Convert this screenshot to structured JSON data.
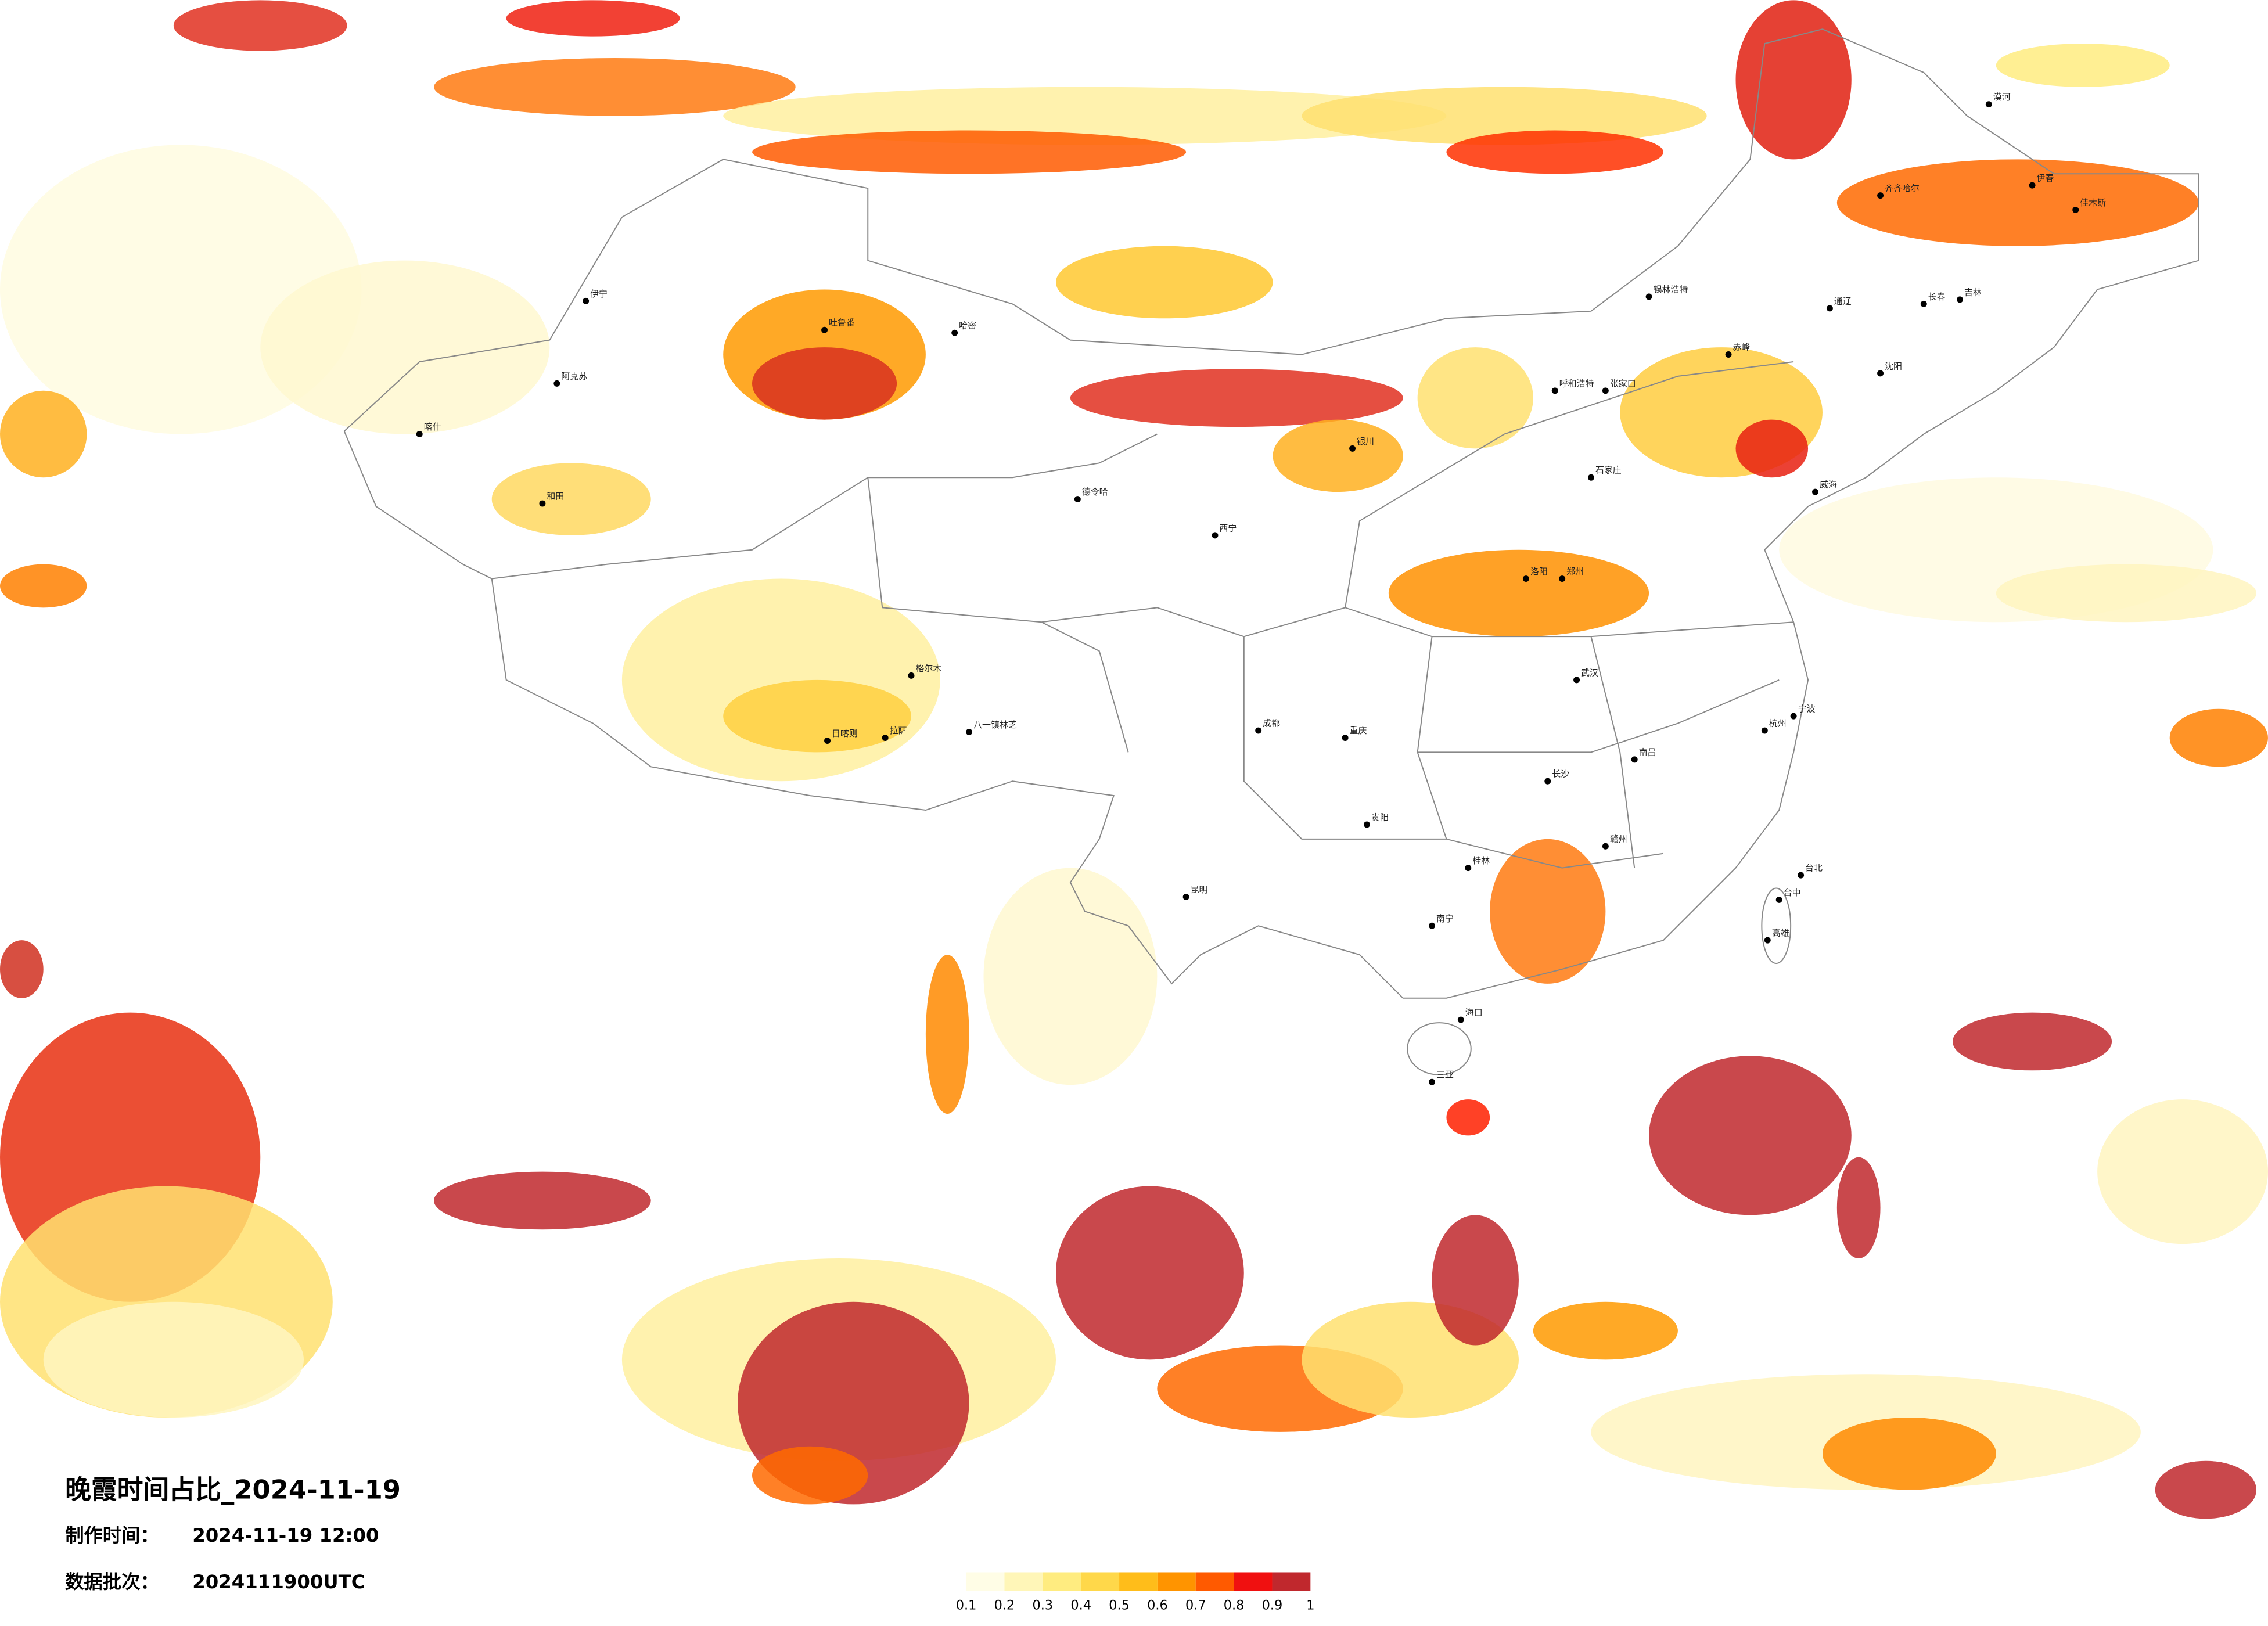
{
  "title": "晚霞时间占比_2024-11-19",
  "made_time_label": "制作时间：",
  "made_time": "2024-11-19 12:00",
  "batch_label": "数据批次：",
  "batch": "2024111900UTC",
  "colorbar": {
    "colors": [
      "#fffde6",
      "#fff6b8",
      "#ffec80",
      "#ffd84a",
      "#ffbd1a",
      "#ff9400",
      "#ff5a00",
      "#f01010",
      "#c0282d"
    ],
    "ticks": [
      0.1,
      0.2,
      0.3,
      0.4,
      0.5,
      0.6,
      0.7,
      0.8,
      0.9,
      1
    ]
  },
  "cities": [
    "漠河",
    "伊春",
    "佳木斯",
    "齐齐哈尔",
    "长春",
    "吉林",
    "沈阳",
    "通辽",
    "赤峰",
    "锡林浩特",
    "呼和浩特",
    "张家口",
    "石家庄",
    "郑州",
    "洛阳",
    "武汉",
    "长沙",
    "南昌",
    "杭州",
    "宁波",
    "赣州",
    "桂林",
    "南宁",
    "海口",
    "三亚",
    "台北",
    "台中",
    "高雄",
    "重庆",
    "成都",
    "贵阳",
    "昆明",
    "西宁",
    "银川",
    "德令哈",
    "格尔木",
    "拉萨",
    "日喀则",
    "八一镇林芝",
    "和田",
    "喀什",
    "阿克苏",
    "伊宁",
    "吐鲁番",
    "哈密",
    "威海"
  ]
}
